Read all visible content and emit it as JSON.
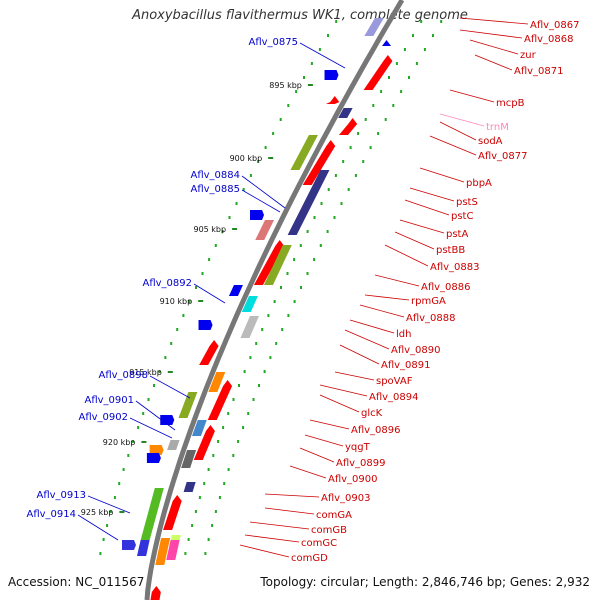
{
  "title": "Anoxybacillus flavithermus WK1, complete genome",
  "footer": {
    "accession": "Accession: NC_011567",
    "summary": "Topology: circular; Length: 2,846,746 bp; Genes: 2,932"
  },
  "colors": {
    "backbone": "#777777",
    "gene_red": "#ff0000",
    "label_red": "#cc0000",
    "label_blue": "#0000cc",
    "trna_pink": "#ff88bb",
    "dots": "#22aa22",
    "tick": "#228822"
  },
  "scale_ticks": [
    "895 kbp",
    "900 kbp",
    "905 kbp",
    "910 kbp",
    "915 kbp",
    "920 kbp",
    "925 kbp"
  ],
  "left_labels": [
    "Aflv_0875",
    "Aflv_0884",
    "Aflv_0885",
    "Aflv_0892",
    "Aflv_0898",
    "Aflv_0901",
    "Aflv_0902",
    "Aflv_0913",
    "Aflv_0914"
  ],
  "right_labels": [
    "Aflv_0867",
    "Aflv_0868",
    "zur",
    "Aflv_0871",
    "mcpB",
    "trnM",
    "sodA",
    "Aflv_0877",
    "pbpA",
    "pstS",
    "pstC",
    "pstA",
    "pstBB",
    "Aflv_0883",
    "Aflv_0886",
    "rpmGA",
    "Aflv_0888",
    "ldh",
    "Aflv_0890",
    "Aflv_0891",
    "spoVAF",
    "Aflv_0894",
    "glcK",
    "Aflv_0896",
    "yqgT",
    "Aflv_0899",
    "Aflv_0900",
    "Aflv_0903",
    "comGA",
    "comGB",
    "comGC",
    "comGD"
  ]
}
